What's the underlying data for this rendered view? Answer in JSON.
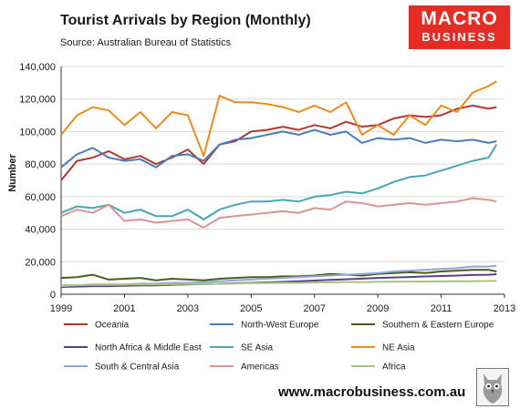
{
  "header": {
    "title": "Tourist Arrivals by Region (Monthly)",
    "subtitle": "Source: Australian Bureau of Statistics"
  },
  "logo": {
    "line1": "MACRO",
    "line2": "BUSINESS",
    "color": "#e52d27"
  },
  "footer": {
    "url": "www.macrobusiness.com.au"
  },
  "chart_data": {
    "type": "line",
    "title": "Tourist Arrivals by Region (Monthly)",
    "subtitle": "Source: Australian Bureau of Statistics",
    "xlabel": "",
    "ylabel": "Number",
    "xlim": [
      1999,
      2013
    ],
    "ylim": [
      0,
      140000
    ],
    "x_ticks": [
      "1999",
      "2001",
      "2003",
      "2005",
      "2007",
      "2009",
      "2011",
      "2013"
    ],
    "y_ticks": [
      "0",
      "20,000",
      "40,000",
      "60,000",
      "80,000",
      "100,000",
      "120,000",
      "140,000"
    ],
    "grid": true,
    "legend_position": "bottom",
    "x": [
      1999.0,
      1999.5,
      2000.0,
      2000.5,
      2001.0,
      2001.5,
      2002.0,
      2002.5,
      2003.0,
      2003.5,
      2004.0,
      2004.5,
      2005.0,
      2005.5,
      2006.0,
      2006.5,
      2007.0,
      2007.5,
      2008.0,
      2008.5,
      2009.0,
      2009.5,
      2010.0,
      2010.5,
      2011.0,
      2011.5,
      2012.0,
      2012.5,
      2012.75
    ],
    "series": [
      {
        "name": "Oceania",
        "color": "#b03a2e",
        "values": [
          70000,
          82000,
          84000,
          88000,
          83000,
          85000,
          80000,
          84000,
          89000,
          80000,
          92000,
          94000,
          100000,
          101000,
          103000,
          101000,
          104000,
          102000,
          106000,
          103000,
          104000,
          108000,
          110000,
          109000,
          110000,
          114000,
          116000,
          114000,
          115000
        ]
      },
      {
        "name": "North-West Europe",
        "color": "#4a7ebb",
        "values": [
          78000,
          86000,
          90000,
          84000,
          82000,
          83000,
          78000,
          85000,
          86000,
          82000,
          92000,
          95000,
          96000,
          98000,
          100000,
          98000,
          101000,
          98000,
          100000,
          93000,
          96000,
          95000,
          96000,
          93000,
          95000,
          94000,
          95000,
          93000,
          94000
        ]
      },
      {
        "name": "Southern & Eastern Europe",
        "color": "#4d5d1e",
        "values": [
          10000,
          10500,
          12000,
          9000,
          9500,
          10000,
          8500,
          9500,
          9000,
          8500,
          9500,
          10000,
          10500,
          10500,
          11000,
          11000,
          11500,
          12500,
          12000,
          11500,
          12500,
          13000,
          13500,
          13000,
          14000,
          14500,
          15000,
          15000,
          14000
        ]
      },
      {
        "name": "North Africa & Middle East",
        "color": "#5b3f8c",
        "values": [
          4500,
          4700,
          5000,
          5000,
          5200,
          5400,
          5500,
          5800,
          6000,
          6200,
          6500,
          6800,
          7000,
          7300,
          7600,
          8000,
          8400,
          8800,
          9200,
          9600,
          10000,
          10300,
          10600,
          10900,
          11200,
          11500,
          11800,
          12000,
          12300
        ]
      },
      {
        "name": "SE Asia",
        "color": "#4aa6b5",
        "values": [
          50000,
          54000,
          53000,
          55000,
          50000,
          52000,
          48000,
          48000,
          52000,
          46000,
          52000,
          55000,
          57000,
          57000,
          58000,
          57000,
          60000,
          61000,
          63000,
          62000,
          65000,
          69000,
          72000,
          73000,
          76000,
          79000,
          82000,
          84000,
          92000
        ]
      },
      {
        "name": "NE Asia",
        "color": "#f08a1c",
        "values": [
          98000,
          110000,
          115000,
          113000,
          104000,
          112000,
          102000,
          112000,
          110000,
          85000,
          122000,
          118000,
          118000,
          117000,
          115000,
          112000,
          116000,
          112000,
          118000,
          98000,
          104000,
          98000,
          110000,
          104000,
          116000,
          112000,
          124000,
          128000,
          131000
        ]
      },
      {
        "name": "South & Central Asia",
        "color": "#8ea9db",
        "values": [
          5000,
          5500,
          6000,
          6000,
          6000,
          6500,
          6500,
          7000,
          7000,
          7500,
          8000,
          8500,
          9000,
          9500,
          10000,
          10500,
          11000,
          11500,
          12000,
          12500,
          13000,
          14000,
          14500,
          15000,
          15500,
          16000,
          17000,
          17000,
          17500
        ]
      },
      {
        "name": "Americas",
        "color": "#d99694",
        "values": [
          48000,
          52000,
          50000,
          55000,
          45000,
          46000,
          44000,
          45000,
          46000,
          41000,
          47000,
          48000,
          49000,
          50000,
          51000,
          50000,
          53000,
          52000,
          57000,
          56000,
          54000,
          55000,
          56000,
          55000,
          56000,
          57000,
          59000,
          58000,
          57000
        ]
      },
      {
        "name": "Africa",
        "color": "#a9c47f",
        "values": [
          5500,
          5600,
          5800,
          5700,
          5900,
          6000,
          6000,
          6200,
          6300,
          6200,
          6500,
          6600,
          6800,
          6900,
          7000,
          7000,
          7200,
          7300,
          7500,
          7400,
          7600,
          7700,
          7800,
          7800,
          7900,
          8000,
          8000,
          8100,
          8200
        ]
      }
    ]
  }
}
